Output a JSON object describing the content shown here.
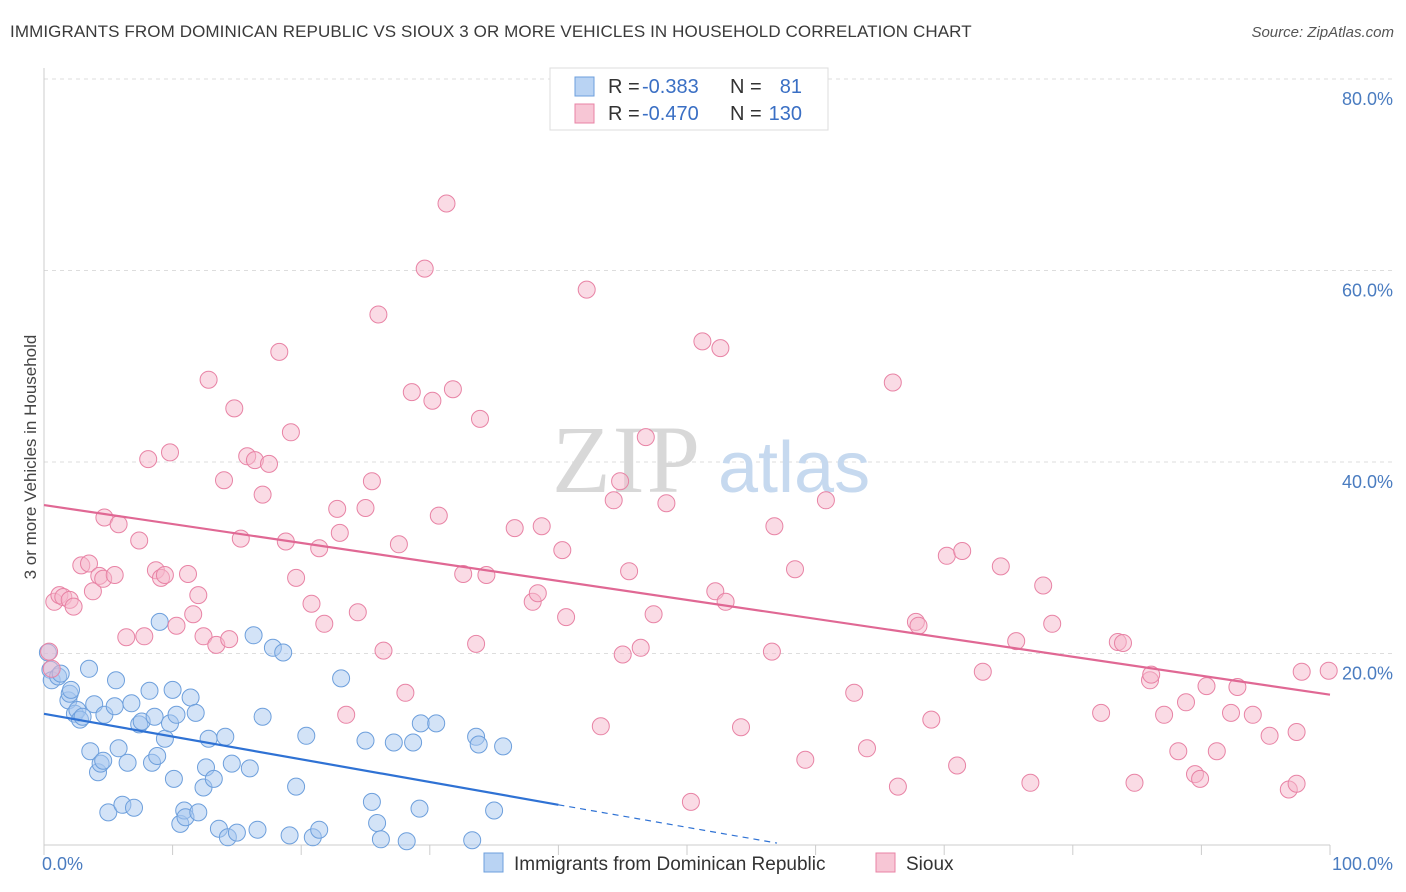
{
  "title": "IMMIGRANTS FROM DOMINICAN REPUBLIC VS SIOUX 3 OR MORE VEHICLES IN HOUSEHOLD CORRELATION CHART",
  "source": "Source: ZipAtlas.com",
  "watermark": {
    "zip": "ZIP",
    "atlas": "atlas"
  },
  "chart_data": {
    "type": "scatter",
    "title": "IMMIGRANTS FROM DOMINICAN REPUBLIC VS SIOUX 3 OR MORE VEHICLES IN HOUSEHOLD CORRELATION CHART",
    "xlabel": "",
    "ylabel": "3 or more Vehicles in Household",
    "xlim": [
      0,
      100
    ],
    "ylim": [
      0,
      80
    ],
    "x_tick_labels": [
      "0.0%",
      "100.0%"
    ],
    "y_tick_values": [
      20,
      40,
      60,
      80
    ],
    "y_tick_labels": [
      "20.0%",
      "40.0%",
      "60.0%",
      "80.0%"
    ],
    "grid": true,
    "legend_top": [
      {
        "r_label": "R =",
        "r_value": "-0.383",
        "n_label": "N =",
        "n_value": "81",
        "color": "#a8c8f0",
        "stroke": "#6d9fdc"
      },
      {
        "r_label": "R =",
        "r_value": "-0.470",
        "n_label": "N =",
        "n_value": "130",
        "color": "#f5b8cb",
        "stroke": "#e883a5"
      }
    ],
    "legend_bottom": [
      "Immigrants from Dominican Republic",
      "Sioux"
    ],
    "series": [
      {
        "name": "Immigrants from Dominican Republic",
        "color": "#a8c8f0",
        "stroke": "#6d9fdc",
        "line_color": "#2f72d4",
        "trend": {
          "x0": 0,
          "y0": 13.7,
          "x1": 40,
          "y1": 4.2,
          "dash_to_x": 57,
          "dash_to_y": 0.2
        },
        "points": [
          [
            0.3,
            20.1
          ],
          [
            0.5,
            18.3
          ],
          [
            0.6,
            17.2
          ],
          [
            1.1,
            17.6
          ],
          [
            1.3,
            17.9
          ],
          [
            1.9,
            15.1
          ],
          [
            2,
            15.8
          ],
          [
            2.1,
            16.2
          ],
          [
            2.4,
            13.7
          ],
          [
            2.6,
            14.1
          ],
          [
            2.8,
            13.1
          ],
          [
            3,
            13.4
          ],
          [
            3.5,
            18.4
          ],
          [
            3.6,
            9.8
          ],
          [
            3.9,
            14.7
          ],
          [
            4.2,
            7.6
          ],
          [
            4.4,
            8.5
          ],
          [
            4.6,
            8.8
          ],
          [
            4.7,
            13.6
          ],
          [
            5,
            3.4
          ],
          [
            5.5,
            14.5
          ],
          [
            5.6,
            17.2
          ],
          [
            5.8,
            10.1
          ],
          [
            6.1,
            4.2
          ],
          [
            6.5,
            8.6
          ],
          [
            6.8,
            14.8
          ],
          [
            7,
            3.9
          ],
          [
            7.4,
            12.6
          ],
          [
            7.6,
            12.9
          ],
          [
            8.2,
            16.1
          ],
          [
            8.4,
            8.6
          ],
          [
            8.6,
            13.4
          ],
          [
            8.8,
            9.3
          ],
          [
            9,
            23.3
          ],
          [
            9.4,
            11.1
          ],
          [
            9.8,
            12.7
          ],
          [
            10,
            16.2
          ],
          [
            10.1,
            6.9
          ],
          [
            10.3,
            13.6
          ],
          [
            10.6,
            2.2
          ],
          [
            10.9,
            3.6
          ],
          [
            11,
            2.9
          ],
          [
            11.4,
            15.4
          ],
          [
            11.8,
            13.8
          ],
          [
            12,
            3.4
          ],
          [
            12.4,
            6
          ],
          [
            12.6,
            8.1
          ],
          [
            12.8,
            11.1
          ],
          [
            13.2,
            6.9
          ],
          [
            13.6,
            1.7
          ],
          [
            14.1,
            11.3
          ],
          [
            14.3,
            0.8
          ],
          [
            14.6,
            8.5
          ],
          [
            15,
            1.3
          ],
          [
            16,
            8
          ],
          [
            16.3,
            21.9
          ],
          [
            16.6,
            1.6
          ],
          [
            17,
            13.4
          ],
          [
            17.8,
            20.6
          ],
          [
            18.6,
            20.1
          ],
          [
            19.1,
            1
          ],
          [
            19.6,
            6.1
          ],
          [
            20.4,
            11.4
          ],
          [
            20.9,
            0.8
          ],
          [
            21.4,
            1.6
          ],
          [
            23.1,
            17.4
          ],
          [
            25,
            10.9
          ],
          [
            25.5,
            4.5
          ],
          [
            25.9,
            2.3
          ],
          [
            26.2,
            0.6
          ],
          [
            27.2,
            10.7
          ],
          [
            28.2,
            0.4
          ],
          [
            28.7,
            10.7
          ],
          [
            29.2,
            3.8
          ],
          [
            29.3,
            12.7
          ],
          [
            30.5,
            12.7
          ],
          [
            33.3,
            0.5
          ],
          [
            33.6,
            11.3
          ],
          [
            33.8,
            10.5
          ],
          [
            35.7,
            10.3
          ],
          [
            35,
            3.6
          ]
        ]
      },
      {
        "name": "Sioux",
        "color": "#f5b8cb",
        "stroke": "#e883a5",
        "line_color": "#e06894",
        "trend": {
          "x0": 0,
          "y0": 35.5,
          "x1": 100,
          "y1": 15.7
        },
        "points": [
          [
            0.4,
            20.2
          ],
          [
            0.6,
            18.4
          ],
          [
            0.8,
            25.4
          ],
          [
            1.2,
            26.1
          ],
          [
            1.5,
            25.9
          ],
          [
            2,
            25.6
          ],
          [
            2.3,
            24.9
          ],
          [
            2.9,
            29.2
          ],
          [
            3.5,
            29.4
          ],
          [
            3.8,
            26.5
          ],
          [
            4.3,
            28.1
          ],
          [
            4.6,
            27.8
          ],
          [
            4.7,
            34.2
          ],
          [
            5.5,
            28.2
          ],
          [
            5.8,
            33.5
          ],
          [
            6.4,
            21.7
          ],
          [
            7.4,
            31.8
          ],
          [
            7.8,
            21.8
          ],
          [
            8.1,
            40.3
          ],
          [
            8.7,
            28.7
          ],
          [
            9.1,
            27.9
          ],
          [
            9.4,
            28.2
          ],
          [
            9.8,
            41
          ],
          [
            10.3,
            22.9
          ],
          [
            11.2,
            28.3
          ],
          [
            11.6,
            24.1
          ],
          [
            12,
            26.1
          ],
          [
            12.4,
            21.8
          ],
          [
            12.8,
            48.6
          ],
          [
            13.4,
            20.9
          ],
          [
            14,
            38.1
          ],
          [
            14.4,
            21.5
          ],
          [
            14.8,
            45.6
          ],
          [
            15.3,
            32
          ],
          [
            15.8,
            40.6
          ],
          [
            16.4,
            40.2
          ],
          [
            17,
            36.6
          ],
          [
            17.5,
            39.8
          ],
          [
            18.3,
            51.5
          ],
          [
            18.8,
            31.7
          ],
          [
            19.2,
            43.1
          ],
          [
            19.6,
            27.9
          ],
          [
            20.8,
            25.2
          ],
          [
            21.4,
            31
          ],
          [
            21.8,
            23.1
          ],
          [
            22.8,
            35.1
          ],
          [
            23,
            32.6
          ],
          [
            23.5,
            13.6
          ],
          [
            24.4,
            24.3
          ],
          [
            25,
            35.2
          ],
          [
            25.5,
            38
          ],
          [
            26,
            55.4
          ],
          [
            26.4,
            20.3
          ],
          [
            27.6,
            31.4
          ],
          [
            28.1,
            15.9
          ],
          [
            28.6,
            47.3
          ],
          [
            29.6,
            60.2
          ],
          [
            30.2,
            46.4
          ],
          [
            30.7,
            34.4
          ],
          [
            31.3,
            67
          ],
          [
            31.8,
            47.6
          ],
          [
            32.6,
            28.3
          ],
          [
            33.6,
            21
          ],
          [
            33.9,
            44.5
          ],
          [
            34.4,
            28.2
          ],
          [
            36.6,
            33.1
          ],
          [
            38,
            25.4
          ],
          [
            38.4,
            26.3
          ],
          [
            38.7,
            33.3
          ],
          [
            40.3,
            30.8
          ],
          [
            40.6,
            23.8
          ],
          [
            42.2,
            58
          ],
          [
            43.3,
            12.4
          ],
          [
            44.3,
            36
          ],
          [
            44.8,
            38
          ],
          [
            45,
            19.9
          ],
          [
            45.5,
            28.6
          ],
          [
            46.4,
            20.6
          ],
          [
            46.8,
            42.6
          ],
          [
            47.4,
            24.1
          ],
          [
            48.4,
            35.7
          ],
          [
            50.3,
            4.5
          ],
          [
            51.2,
            52.6
          ],
          [
            52.2,
            26.5
          ],
          [
            52.6,
            51.9
          ],
          [
            53,
            25.4
          ],
          [
            54.2,
            12.3
          ],
          [
            56.6,
            20.2
          ],
          [
            56.8,
            33.3
          ],
          [
            58.4,
            28.8
          ],
          [
            59.2,
            8.9
          ],
          [
            60.8,
            36
          ],
          [
            63,
            15.9
          ],
          [
            64,
            10.1
          ],
          [
            66,
            48.3
          ],
          [
            66.4,
            6.1
          ],
          [
            67.8,
            23.3
          ],
          [
            68,
            22.9
          ],
          [
            69,
            13.1
          ],
          [
            70.2,
            30.2
          ],
          [
            71.4,
            30.7
          ],
          [
            71,
            8.3
          ],
          [
            73,
            18.1
          ],
          [
            74.4,
            29.1
          ],
          [
            75.6,
            21.3
          ],
          [
            76.7,
            6.5
          ],
          [
            77.7,
            27.1
          ],
          [
            78.4,
            23.1
          ],
          [
            82.2,
            13.8
          ],
          [
            83.5,
            21.2
          ],
          [
            83.9,
            21.1
          ],
          [
            84.8,
            6.5
          ],
          [
            86,
            17.2
          ],
          [
            86.1,
            17.8
          ],
          [
            87.1,
            13.6
          ],
          [
            88.2,
            9.8
          ],
          [
            88.8,
            14.9
          ],
          [
            89.5,
            7.4
          ],
          [
            89.9,
            6.9
          ],
          [
            90.4,
            16.6
          ],
          [
            91.2,
            9.8
          ],
          [
            92.3,
            13.8
          ],
          [
            92.8,
            16.5
          ],
          [
            94,
            13.6
          ],
          [
            95.3,
            11.4
          ],
          [
            96.8,
            5.8
          ],
          [
            97.4,
            11.8
          ],
          [
            97.8,
            18.1
          ],
          [
            97.4,
            6.4
          ],
          [
            99.9,
            18.2
          ]
        ]
      }
    ]
  }
}
